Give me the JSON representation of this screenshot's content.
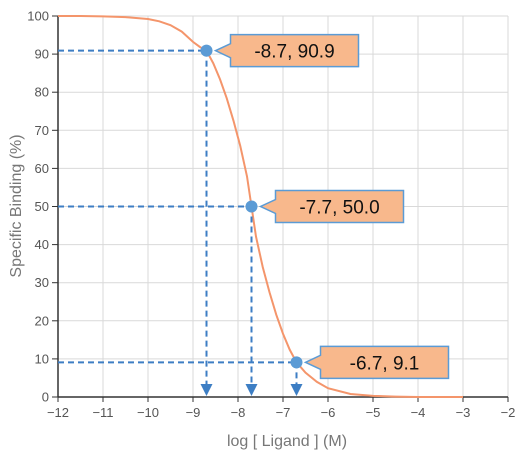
{
  "chart_data": {
    "type": "line",
    "title": "",
    "xlabel": "log [ Ligand ] (M)",
    "ylabel": "Specific Binding (%)",
    "xlim": [
      -12,
      -2
    ],
    "ylim": [
      0,
      100
    ],
    "x_ticks": [
      -12,
      -11,
      -10,
      -9,
      -8,
      -7,
      -6,
      -5,
      -4,
      -3,
      -2
    ],
    "x_tick_labels": [
      "−12",
      "−11",
      "−10",
      "−9",
      "−8",
      "−7",
      "−6",
      "−5",
      "−4",
      "−3",
      "−2"
    ],
    "y_ticks": [
      0,
      10,
      20,
      30,
      40,
      50,
      60,
      70,
      80,
      90,
      100
    ],
    "y_tick_labels": [
      "0",
      "10",
      "20",
      "30",
      "40",
      "50",
      "60",
      "70",
      "80",
      "90",
      "100"
    ],
    "grid": true,
    "curve": {
      "x": [
        -12,
        -11.5,
        -11,
        -10.5,
        -10,
        -9.75,
        -9.5,
        -9.25,
        -9,
        -8.85,
        -8.7,
        -8.55,
        -8.4,
        -8.25,
        -8.1,
        -7.95,
        -7.8,
        -7.7,
        -7.6,
        -7.45,
        -7.3,
        -7.15,
        -7,
        -6.85,
        -6.7,
        -6.5,
        -6.25,
        -6,
        -5.5,
        -5,
        -4.5,
        -4,
        -3.5,
        -3
      ],
      "y": [
        100,
        100,
        99.9,
        99.7,
        99.2,
        98.6,
        97.6,
        95.9,
        93.2,
        91.9,
        90.9,
        87.6,
        83.4,
        78.4,
        72.5,
        65.9,
        57.9,
        50.0,
        42.1,
        34.1,
        27.5,
        21.6,
        16.6,
        12.4,
        9.1,
        6.4,
        4.0,
        2.3,
        0.8,
        0.3,
        0.1,
        0.0,
        0.0,
        0.0
      ]
    },
    "colors": {
      "curve": "#f4956b",
      "marker": "#5b9bd5",
      "guide": "#3d7ec4",
      "callout_fill": "#f8b88c",
      "callout_stroke": "#5b9bd5",
      "grid": "#d9d9d9",
      "axis": "#333333"
    },
    "points": [
      {
        "x": -8.7,
        "y": 90.9,
        "label": "-8.7, 90.9"
      },
      {
        "x": -7.7,
        "y": 50.0,
        "label": "-7.7, 50.0"
      },
      {
        "x": -6.7,
        "y": 9.1,
        "label": "-6.7, 9.1"
      }
    ]
  }
}
